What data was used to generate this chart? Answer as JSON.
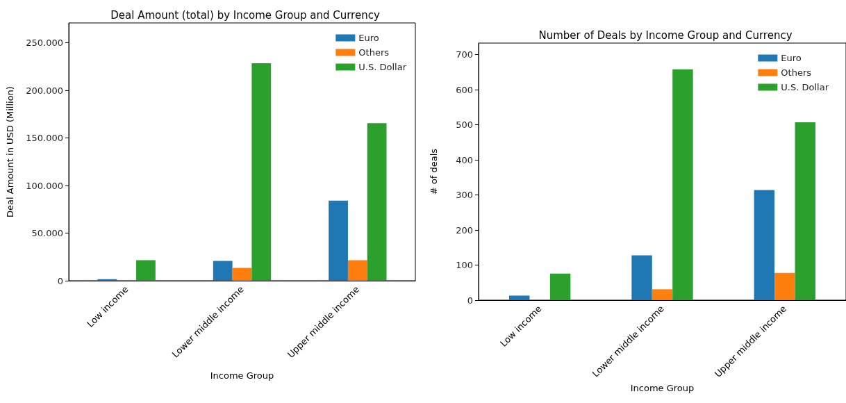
{
  "chart_data": [
    {
      "type": "bar",
      "title": "Deal Amount (total) by Income Group and Currency",
      "xlabel": "Income Group",
      "ylabel": "Deal Amount in USD (Million)",
      "categories": [
        "Low income",
        "Lower middle income",
        "Upper middle income"
      ],
      "series": [
        {
          "name": "Euro",
          "color": "#1f77b4",
          "values": [
            1600,
            20800,
            84100
          ]
        },
        {
          "name": "Others",
          "color": "#ff7f0e",
          "values": [
            0,
            13500,
            21600
          ]
        },
        {
          "name": "U.S. Dollar",
          "color": "#2ca02c",
          "values": [
            21600,
            228600,
            165600
          ]
        }
      ],
      "ylim": [
        0,
        271000
      ],
      "yticks": [
        0,
        {
          "value": 50000,
          "label": "50.000"
        },
        {
          "value": 100000,
          "label": "100.000"
        },
        {
          "value": 150000,
          "label": "150.000"
        },
        {
          "value": 200000,
          "label": "200.000"
        },
        {
          "value": 250000,
          "label": "250.000"
        }
      ],
      "grid": false,
      "legend": "top right"
    },
    {
      "type": "bar",
      "title": "Number of Deals by Income Group and Currency",
      "xlabel": "Income Group",
      "ylabel": "# of deals",
      "categories": [
        "Low income",
        "Lower middle income",
        "Upper middle income"
      ],
      "series": [
        {
          "name": "Euro",
          "color": "#1f77b4",
          "values": [
            13,
            128,
            314
          ]
        },
        {
          "name": "Others",
          "color": "#ff7f0e",
          "values": [
            0,
            31,
            78
          ]
        },
        {
          "name": "U.S. Dollar",
          "color": "#2ca02c",
          "values": [
            76,
            658,
            507
          ]
        }
      ],
      "ylim": [
        0,
        733
      ],
      "yticks": [
        0,
        100,
        200,
        300,
        400,
        500,
        600,
        700
      ],
      "grid": false,
      "legend": "top right"
    }
  ]
}
